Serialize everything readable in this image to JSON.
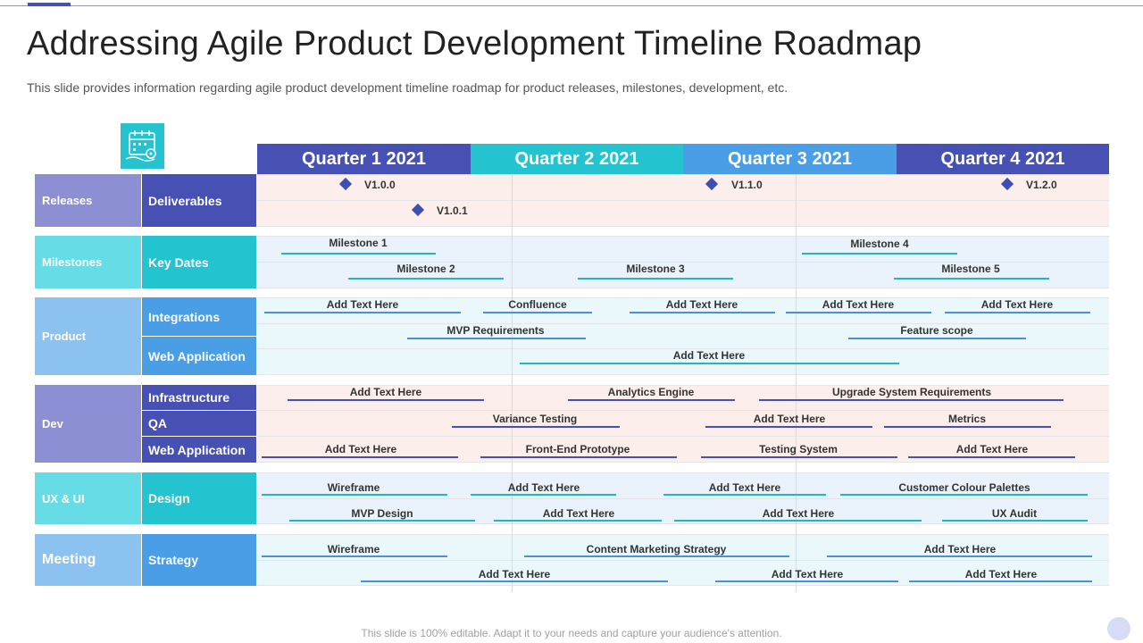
{
  "header": {
    "title": "Addressing Agile Product Development Timeline Roadmap",
    "subtitle": "This slide provides information regarding agile product development timeline roadmap for product releases, milestones, development, etc."
  },
  "footer": {
    "text": "This slide is 100% editable. Adapt it to your needs and capture your audience's attention."
  },
  "icons": {
    "calendar": "calendar-settings-icon"
  },
  "colors": {
    "navy": "#4750b3",
    "teal": "#23c3cf",
    "blue": "#4a9ee5",
    "lightbar_teal": "#22b6c4",
    "bar_blue": "#4a8fe0",
    "bar_navy": "#4750b3"
  },
  "quarters": [
    "Quarter 1 2021",
    "Quarter 2 2021",
    "Quarter 3 2021",
    "Quarter 4 2021"
  ],
  "categories": {
    "releases": "Releases",
    "milestones": "Milestones",
    "product": "Product",
    "dev": "Dev",
    "uxui": "UX & UI",
    "meeting": "Meeting"
  },
  "subcategories": {
    "deliverables": "Deliverables",
    "key_dates": "Key Dates",
    "integrations": "Integrations",
    "web_application_product": "Web Application",
    "infrastructure": "Infrastructure",
    "qa": "QA",
    "web_application_dev": "Web Application",
    "design": "Design",
    "strategy": "Strategy"
  },
  "releases": [
    "V1.0.0",
    "V1.0.1",
    "V1.1.0",
    "V1.2.0"
  ],
  "milestones": [
    "Milestone 1",
    "Milestone 2",
    "Milestone 3",
    "Milestone 4",
    "Milestone 5"
  ],
  "product": {
    "integrations": [
      "Add Text Here",
      "Confluence",
      "Add Text Here",
      "Add Text Here",
      "Add Text Here"
    ],
    "integrations_row2": [
      "MVP Requirements",
      "Feature scope"
    ],
    "web_application": [
      "Add Text Here"
    ]
  },
  "dev": {
    "infrastructure": [
      "Add Text Here",
      "Analytics Engine",
      "Upgrade System Requirements"
    ],
    "qa": [
      "Variance Testing",
      "Add Text Here",
      "Metrics"
    ],
    "web_application": [
      "Add Text Here",
      "Front-End  Prototype",
      "Testing System",
      "Add Text Here"
    ]
  },
  "design": {
    "row1": [
      "Wireframe",
      "Add Text Here",
      "Add Text Here",
      "Customer Colour Palettes"
    ],
    "row2": [
      "MVP Design",
      "Add Text Here",
      "Add Text Here",
      "UX Audit"
    ]
  },
  "strategy": {
    "row1": [
      "Wireframe",
      "Content Marketing Strategy",
      "Add Text Here"
    ],
    "row2": [
      "Add Text Here",
      "Add Text Here",
      "Add Text Here"
    ]
  }
}
